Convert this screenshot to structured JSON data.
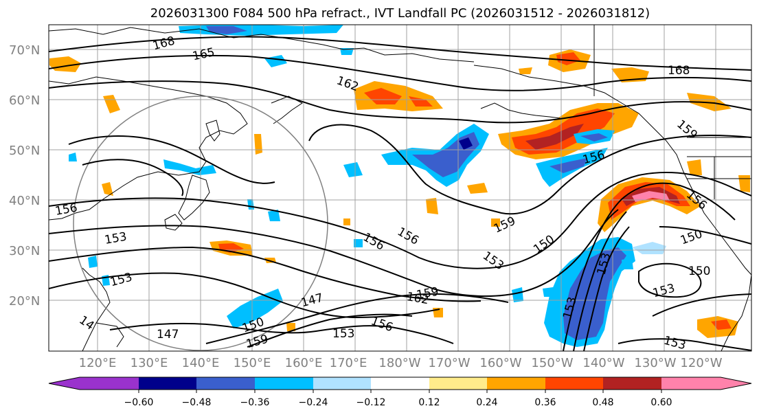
{
  "title": "2026031300 F084 500 hPa refract., IVT Landfall PC (2026031512 - 2026031812)",
  "lat_labels": [
    "70°N",
    "60°N",
    "50°N",
    "40°N",
    "30°N",
    "20°N"
  ],
  "lon_labels": [
    "120°E",
    "130°E",
    "140°E",
    "150°E",
    "160°E",
    "170°E",
    "180°W",
    "170°W",
    "160°W",
    "150°W",
    "140°W",
    "130°W",
    "120°W"
  ],
  "colorbar": {
    "colors": [
      "#9a32cd",
      "#00008b",
      "#3a5fcd",
      "#00bfff",
      "#b0e2ff",
      "#ffffff",
      "#ffec8b",
      "#ffa500",
      "#ff4500",
      "#b22222",
      "#ff82ab"
    ],
    "tick_labels": [
      "−0.60",
      "−0.48",
      "−0.36",
      "−0.24",
      "−0.12",
      "0.12",
      "0.24",
      "0.36",
      "0.48",
      "0.60"
    ]
  },
  "contour_labels": [
    "168",
    "165",
    "162",
    "168",
    "159",
    "156",
    "156",
    "156",
    "159",
    "156",
    "150",
    "150",
    "150",
    "153",
    "153",
    "156",
    "153",
    "159",
    "162",
    "147",
    "153",
    "150",
    "159",
    "156",
    "147",
    "153",
    "14",
    "153",
    "153",
    "153"
  ]
}
